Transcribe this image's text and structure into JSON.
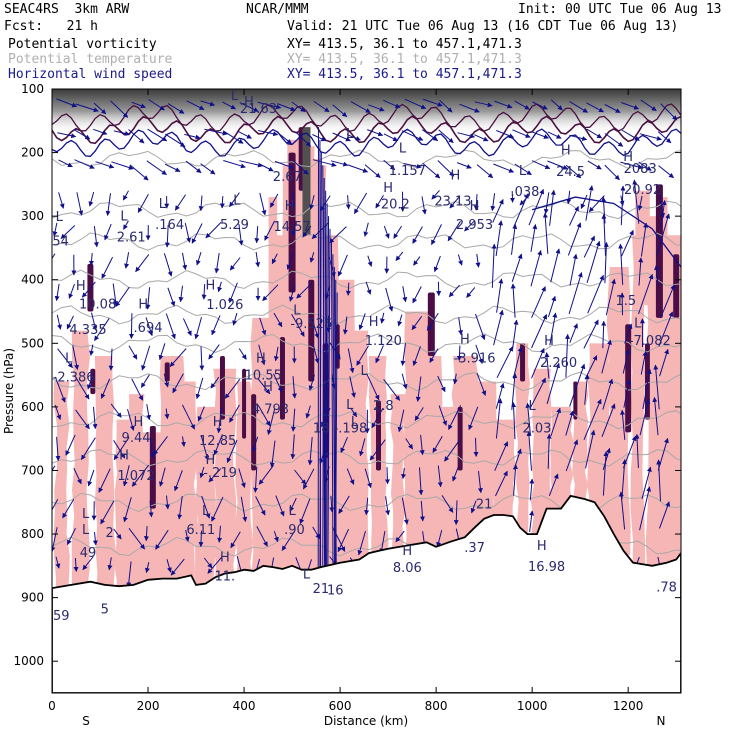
{
  "header": {
    "model": "SEAC4RS  3km ARW",
    "org": "NCAR/MMM",
    "init": "Init: 00 UTC Tue 06 Aug 13",
    "fcst": "Fcst:   21 h",
    "valid": "Valid: 21 UTC Tue 06 Aug 13 (16 CDT Tue 06 Aug 13)",
    "fields": [
      {
        "name": "Potential vorticity",
        "xy": "XY= 413.5, 36.1 to 457.1,471.3",
        "color": "#000000"
      },
      {
        "name": "Potential temperature",
        "xy": "XY= 413.5, 36.1 to 457.1,471.3",
        "color": "#b0b0b0"
      },
      {
        "name": "Horizontal wind speed",
        "xy": "XY= 413.5, 36.1 to 457.1,471.3",
        "color": "#1b1b8a"
      }
    ]
  },
  "chart_data": {
    "type": "cross-section",
    "xlabel": "Distance (km)",
    "ylabel": "Pressure (hPa)",
    "xlim": [
      0,
      1310
    ],
    "ylim": [
      1050,
      100
    ],
    "xticks": [
      0,
      200,
      400,
      600,
      800,
      1000,
      1200
    ],
    "yticks": [
      100,
      200,
      300,
      400,
      500,
      600,
      700,
      800,
      900,
      1000
    ],
    "end_labels": {
      "left": "S",
      "right": "N"
    },
    "colors": {
      "pv_fill": "#f7b6b6",
      "pv_high": "#4a0d45",
      "wind": "#10108a",
      "theta": "#a8a8a8",
      "terrain": "#000000"
    },
    "terrain": [
      [
        0,
        885
      ],
      [
        40,
        880
      ],
      [
        80,
        875
      ],
      [
        110,
        880
      ],
      [
        140,
        882
      ],
      [
        170,
        880
      ],
      [
        200,
        872
      ],
      [
        230,
        870
      ],
      [
        260,
        870
      ],
      [
        290,
        865
      ],
      [
        300,
        880
      ],
      [
        320,
        878
      ],
      [
        340,
        868
      ],
      [
        360,
        862
      ],
      [
        380,
        860
      ],
      [
        400,
        856
      ],
      [
        420,
        858
      ],
      [
        440,
        850
      ],
      [
        460,
        852
      ],
      [
        480,
        855
      ],
      [
        500,
        850
      ],
      [
        520,
        856
      ],
      [
        540,
        856
      ],
      [
        560,
        852
      ],
      [
        600,
        845
      ],
      [
        640,
        840
      ],
      [
        660,
        830
      ],
      [
        700,
        823
      ],
      [
        740,
        818
      ],
      [
        780,
        813
      ],
      [
        800,
        820
      ],
      [
        830,
        812
      ],
      [
        860,
        805
      ],
      [
        880,
        790
      ],
      [
        900,
        776
      ],
      [
        920,
        770
      ],
      [
        940,
        770
      ],
      [
        960,
        772
      ],
      [
        975,
        790
      ],
      [
        990,
        800
      ],
      [
        1010,
        800
      ],
      [
        1030,
        760
      ],
      [
        1060,
        760
      ],
      [
        1080,
        740
      ],
      [
        1110,
        745
      ],
      [
        1130,
        750
      ],
      [
        1150,
        772
      ],
      [
        1170,
        800
      ],
      [
        1190,
        826
      ],
      [
        1210,
        845
      ],
      [
        1250,
        850
      ],
      [
        1280,
        845
      ],
      [
        1300,
        840
      ],
      [
        1310,
        830
      ]
    ],
    "labels": [
      {
        "t": "H",
        "x": 410,
        "p": 127
      },
      {
        "t": "L",
        "x": 380,
        "p": 117
      },
      {
        "t": "21.63",
        "x": 430,
        "p": 138
      },
      {
        "t": "L",
        "x": 620,
        "p": 177
      },
      {
        "t": "L",
        "x": 730,
        "p": 200
      },
      {
        "t": "1.157",
        "x": 740,
        "p": 235
      },
      {
        "t": "H",
        "x": 700,
        "p": 262
      },
      {
        "t": "20.2",
        "x": 715,
        "p": 288
      },
      {
        "t": "H",
        "x": 840,
        "p": 242
      },
      {
        "t": "23.13",
        "x": 835,
        "p": 283
      },
      {
        "t": "L",
        "x": 980,
        "p": 235
      },
      {
        "t": ".038",
        "x": 985,
        "p": 268
      },
      {
        "t": "H",
        "x": 1070,
        "p": 203
      },
      {
        "t": "24.5",
        "x": 1080,
        "p": 237
      },
      {
        "t": "H",
        "x": 1200,
        "p": 213
      },
      {
        "t": "2083",
        "x": 1225,
        "p": 232
      },
      {
        "t": "20.92",
        "x": 1230,
        "p": 265
      },
      {
        "t": "L",
        "x": 15,
        "p": 308
      },
      {
        "t": ".054",
        "x": 5,
        "p": 346
      },
      {
        "t": "L",
        "x": 150,
        "p": 307
      },
      {
        "t": "2.61",
        "x": 165,
        "p": 340
      },
      {
        "t": "L",
        "x": 230,
        "p": 287
      },
      {
        "t": ".164",
        "x": 245,
        "p": 320
      },
      {
        "t": "L",
        "x": 385,
        "p": 282
      },
      {
        "t": "5.29",
        "x": 380,
        "p": 320
      },
      {
        "t": "H",
        "x": 495,
        "p": 290
      },
      {
        "t": "14.57",
        "x": 500,
        "p": 323
      },
      {
        "t": "2.67",
        "x": 490,
        "p": 245
      },
      {
        "t": "H",
        "x": 880,
        "p": 290
      },
      {
        "t": "2.953",
        "x": 880,
        "p": 320
      },
      {
        "t": "H",
        "x": 60,
        "p": 416
      },
      {
        "t": "10.08",
        "x": 95,
        "p": 445
      },
      {
        "t": "H",
        "x": 190,
        "p": 445
      },
      {
        "t": "4.335",
        "x": 75,
        "p": 485
      },
      {
        "t": ".694",
        "x": 200,
        "p": 482
      },
      {
        "t": "H",
        "x": 330,
        "p": 415
      },
      {
        "t": "1.026",
        "x": 360,
        "p": 446
      },
      {
        "t": "L",
        "x": 510,
        "p": 455
      },
      {
        "t": "-9.526",
        "x": 540,
        "p": 476
      },
      {
        "t": "H",
        "x": 670,
        "p": 473
      },
      {
        "t": "1.120",
        "x": 690,
        "p": 503
      },
      {
        "t": "H",
        "x": 860,
        "p": 500
      },
      {
        "t": "-3.916",
        "x": 880,
        "p": 530
      },
      {
        "t": "H",
        "x": 1035,
        "p": 503
      },
      {
        "t": "2.260",
        "x": 1055,
        "p": 537
      },
      {
        "t": "1.5",
        "x": 1195,
        "p": 440
      },
      {
        "t": "L",
        "x": 1220,
        "p": 475
      },
      {
        "t": "-7.082",
        "x": 1245,
        "p": 503
      },
      {
        "t": "L",
        "x": 35,
        "p": 530
      },
      {
        "t": "-2.386",
        "x": 45,
        "p": 560
      },
      {
        "t": "H",
        "x": 435,
        "p": 530
      },
      {
        "t": "10.55",
        "x": 440,
        "p": 557
      },
      {
        "t": "H",
        "x": 450,
        "p": 575
      },
      {
        "t": "4.793",
        "x": 455,
        "p": 610
      },
      {
        "t": "L",
        "x": 650,
        "p": 550
      },
      {
        "t": "L",
        "x": 620,
        "p": 603
      },
      {
        "t": "2.8",
        "x": 690,
        "p": 605
      },
      {
        "t": "L",
        "x": 630,
        "p": 630
      },
      {
        "t": "18 -.198",
        "x": 600,
        "p": 640
      },
      {
        "t": "L",
        "x": 1000,
        "p": 605
      },
      {
        "t": "2.03",
        "x": 1010,
        "p": 640
      },
      {
        "t": "H",
        "x": 180,
        "p": 630
      },
      {
        "t": "9.44",
        "x": 175,
        "p": 655
      },
      {
        "t": "H",
        "x": 150,
        "p": 683
      },
      {
        "t": "1.072",
        "x": 175,
        "p": 715
      },
      {
        "t": "H",
        "x": 345,
        "p": 630
      },
      {
        "t": "12.85",
        "x": 345,
        "p": 660
      },
      {
        "t": "H",
        "x": 330,
        "p": 690
      },
      {
        "t": "-.219",
        "x": 350,
        "p": 710
      },
      {
        "t": "L",
        "x": 320,
        "p": 770
      },
      {
        "t": "6.11",
        "x": 310,
        "p": 800
      },
      {
        "t": "L",
        "x": 500,
        "p": 770
      },
      {
        "t": ".90",
        "x": 505,
        "p": 800
      },
      {
        "t": "L",
        "x": 70,
        "p": 800
      },
      {
        "t": "49",
        "x": 75,
        "p": 836
      },
      {
        "t": "L",
        "x": 70,
        "p": 775
      },
      {
        "t": "2",
        "x": 120,
        "p": 805
      },
      {
        "t": "H",
        "x": 360,
        "p": 843
      },
      {
        "t": "11.",
        "x": 360,
        "p": 873
      },
      {
        "t": "H",
        "x": 740,
        "p": 833
      },
      {
        "t": "8.06",
        "x": 740,
        "p": 860
      },
      {
        "t": "H",
        "x": 1020,
        "p": 825
      },
      {
        "t": "16.98",
        "x": 1030,
        "p": 858
      },
      {
        "t": "21",
        "x": 900,
        "p": 760
      },
      {
        "t": ".37",
        "x": 880,
        "p": 828
      },
      {
        "t": "L",
        "x": 530,
        "p": 870
      },
      {
        "t": "21",
        "x": 560,
        "p": 893
      },
      {
        "t": "16",
        "x": 590,
        "p": 895
      },
      {
        "t": ".59",
        "x": 15,
        "p": 935
      },
      {
        "t": "5",
        "x": 110,
        "p": 925
      },
      {
        "t": ".78",
        "x": 1280,
        "p": 890
      }
    ]
  }
}
